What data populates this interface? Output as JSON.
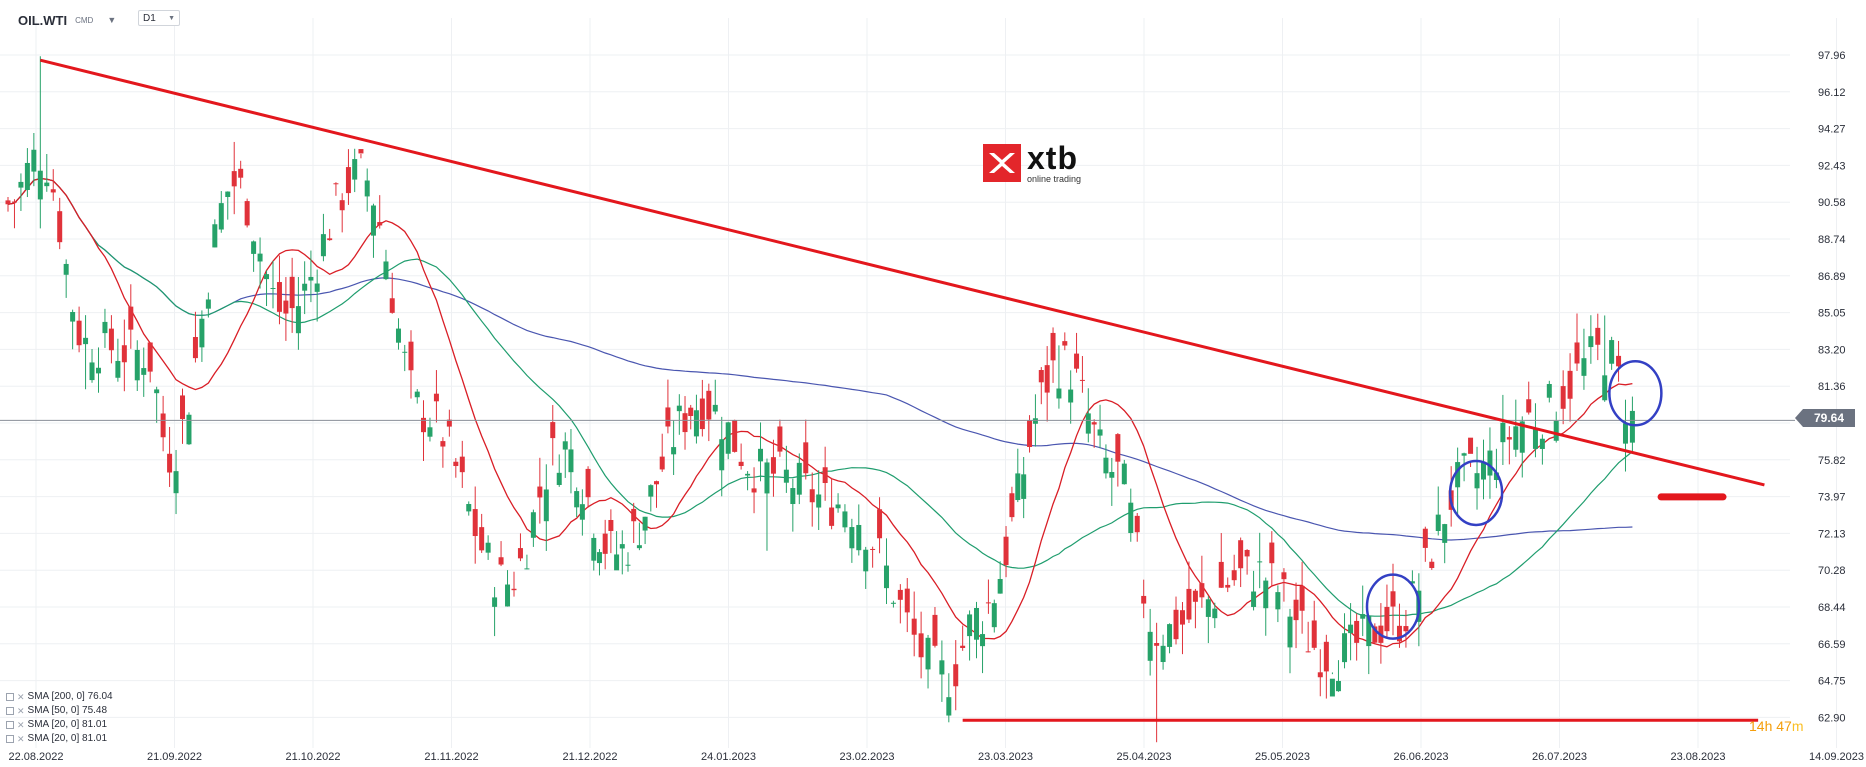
{
  "header": {
    "symbol": "OIL.WTI",
    "symbol_type": "CMD",
    "timeframe": "D1"
  },
  "logo": {
    "word": "xtb",
    "sub": "online trading"
  },
  "legend": [
    {
      "label": "SMA [200, 0] 76.04"
    },
    {
      "label": "SMA [50, 0] 75.48"
    },
    {
      "label": "SMA [20, 0] 81.01"
    },
    {
      "label": "SMA [20, 0] 81.01"
    }
  ],
  "countdown": {
    "hours": "14h",
    "minutes": "47",
    "unit": "m"
  },
  "current_price": "79.64",
  "colors": {
    "up": "#26a269",
    "down": "#e0323a",
    "sma200": "#4a56b0",
    "sma50": "#1f9d6e",
    "sma20": "#d91e26",
    "trend": "#e3171d",
    "circle": "#3340c4",
    "price_line": "#8a8f98"
  },
  "chart_data": {
    "type": "candlestick",
    "x_axis_labels": [
      "22.08.2022",
      "21.09.2022",
      "21.10.2022",
      "21.11.2022",
      "21.12.2022",
      "24.01.2023",
      "23.02.2023",
      "23.03.2023",
      "25.04.2023",
      "25.05.2023",
      "26.06.2023",
      "26.07.2023",
      "23.08.2023",
      "14.09.2023"
    ],
    "y_axis_labels": [
      "97.96",
      "96.12",
      "94.27",
      "92.43",
      "90.58",
      "88.74",
      "86.89",
      "85.05",
      "83.20",
      "81.36",
      "77.66",
      "75.82",
      "73.97",
      "72.13",
      "70.28",
      "68.44",
      "66.59",
      "64.75",
      "62.90"
    ],
    "ylim": [
      62.2,
      100.0
    ],
    "grid": true,
    "current_price": 79.64,
    "ohlc_key_points": [
      {
        "date": "22.08.2022",
        "close": 90.5
      },
      {
        "date": "29.08.2022",
        "high": 97.9,
        "close": 93.0
      },
      {
        "date": "08.09.2022",
        "low": 81.2,
        "close": 83.5
      },
      {
        "date": "21.09.2022",
        "close": 83.0
      },
      {
        "date": "26.09.2022",
        "low": 76.3,
        "close": 78.0
      },
      {
        "date": "10.10.2022",
        "high": 93.6,
        "close": 91.5
      },
      {
        "date": "21.10.2022",
        "close": 85.0
      },
      {
        "date": "07.11.2022",
        "high": 93.0,
        "close": 92.0
      },
      {
        "date": "21.11.2022",
        "close": 80.0
      },
      {
        "date": "09.12.2022",
        "low": 70.3,
        "close": 71.5
      },
      {
        "date": "21.12.2022",
        "close": 78.3
      },
      {
        "date": "03.01.2023",
        "low": 72.6,
        "close": 73.0
      },
      {
        "date": "24.01.2023",
        "close": 80.5
      },
      {
        "date": "07.02.2023",
        "low": 73.1,
        "close": 77.0
      },
      {
        "date": "23.02.2023",
        "close": 75.5
      },
      {
        "date": "17.03.2023",
        "low": 64.5,
        "close": 66.8
      },
      {
        "date": "23.03.2023",
        "close": 69.8
      },
      {
        "date": "12.04.2023",
        "high": 83.4,
        "close": 82.5
      },
      {
        "date": "25.04.2023",
        "close": 77.0
      },
      {
        "date": "04.05.2023",
        "low": 63.5,
        "close": 69.0
      },
      {
        "date": "25.05.2023",
        "close": 72.0
      },
      {
        "date": "12.06.2023",
        "low": 67.0,
        "close": 67.8
      },
      {
        "date": "26.06.2023",
        "close": 69.5
      },
      {
        "date": "13.07.2023",
        "high": 77.3,
        "close": 76.9
      },
      {
        "date": "26.07.2023",
        "close": 79.8
      },
      {
        "date": "10.08.2023",
        "high": 84.9,
        "close": 83.0
      },
      {
        "date": "16.08.2023",
        "close": 79.6
      }
    ],
    "series": [
      {
        "name": "SMA [200, 0] 76.04",
        "type": "line"
      },
      {
        "name": "SMA [50, 0] 75.48",
        "type": "line"
      },
      {
        "name": "SMA [20, 0] 81.01",
        "type": "line"
      }
    ],
    "annotations": [
      {
        "type": "trendline",
        "from": {
          "date": "29.08.2022",
          "value": 97.7
        },
        "to": {
          "date": "07.09.2023",
          "value": 76.4
        }
      },
      {
        "type": "horizontal_line",
        "from_date": "20.03.2023",
        "to_date": "06.09.2023",
        "value": 64.6
      },
      {
        "type": "circle",
        "date": "26.06.2023",
        "value": 70.3
      },
      {
        "type": "circle",
        "date": "14.07.2023",
        "value": 76.0
      },
      {
        "type": "circle",
        "date": "16.08.2023",
        "value": 81.0
      },
      {
        "type": "marker",
        "date": "22.08.2023",
        "value": 75.8
      }
    ]
  }
}
